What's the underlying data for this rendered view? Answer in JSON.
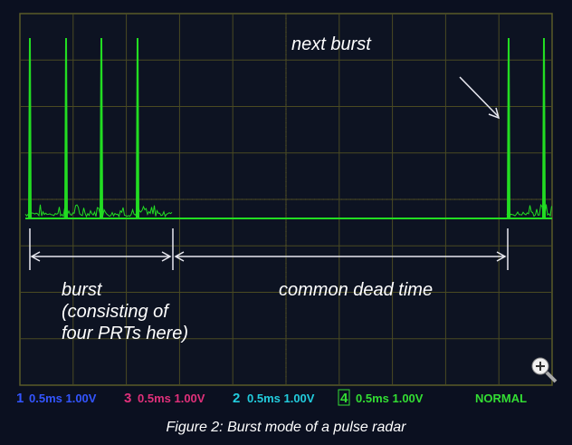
{
  "annotations": {
    "next_burst": "next burst",
    "burst": [
      "burst",
      "(consisting of",
      "four PRTs here)"
    ],
    "dead_time": "common dead time"
  },
  "channels": [
    {
      "number": "1",
      "setting": "0.5ms 1.00V"
    },
    {
      "number": "3",
      "setting": "0.5ms 1.00V"
    },
    {
      "number": "2",
      "setting": "0.5ms 1.00V"
    },
    {
      "number": "4",
      "setting": "0.5ms 1.00V"
    }
  ],
  "mode": "NORMAL",
  "caption": "Figure 2: Burst mode of a pulse radar"
}
